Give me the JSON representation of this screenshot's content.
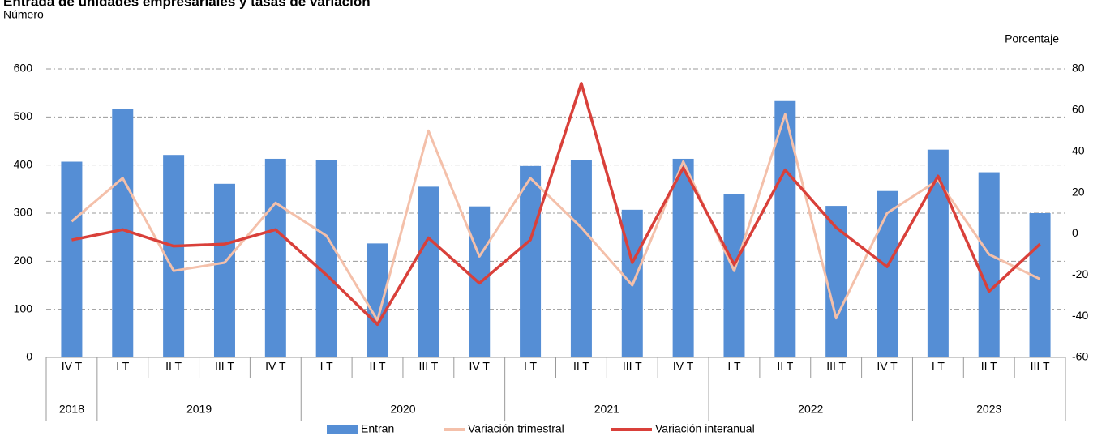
{
  "chart_data": {
    "type": "bar_line_combo",
    "title": "Entrada de unidades empresariales y tasas de variación",
    "y_label": "Número",
    "y2_label": "Porcentaje",
    "categories": [
      "IV T",
      "I T",
      "II T",
      "III T",
      "IV T",
      "I T",
      "II T",
      "III T",
      "IV T",
      "I T",
      "II T",
      "III T",
      "IV T",
      "I T",
      "II T",
      "III T",
      "IV T",
      "I T",
      "II T",
      "III T"
    ],
    "year_labels": [
      "2018",
      "2019",
      null,
      null,
      null,
      "2020",
      null,
      null,
      null,
      "2021",
      null,
      null,
      null,
      "2022",
      null,
      null,
      null,
      "2023",
      null,
      null
    ],
    "series": [
      {
        "name": "Entran",
        "type": "bar",
        "color": "#558ed5",
        "values": [
          407,
          516,
          421,
          361,
          413,
          410,
          237,
          355,
          314,
          398,
          410,
          307,
          413,
          339,
          533,
          315,
          346,
          432,
          385,
          300
        ]
      },
      {
        "name": "Variación trimestral",
        "type": "line",
        "axis": "y2",
        "color": "#f4c0aa",
        "values": [
          6,
          27,
          -18,
          -14,
          15,
          -1,
          -42,
          50,
          -11,
          27,
          3,
          -25,
          35,
          -18,
          58,
          -41,
          10,
          26,
          -10,
          -22
        ]
      },
      {
        "name": "Variación interanual",
        "type": "line",
        "axis": "y2",
        "color": "#d9403a",
        "values": [
          -3,
          2,
          -6,
          -5,
          2,
          -20,
          -44,
          -2,
          -24,
          -3,
          73,
          -14,
          32,
          -15,
          31,
          3,
          -16,
          28,
          -28,
          -5
        ]
      }
    ],
    "ylim": [
      0,
      600
    ],
    "yticks": [
      0,
      100,
      200,
      300,
      400,
      500,
      600
    ],
    "y2lim": [
      -60,
      80
    ],
    "y2ticks": [
      -60,
      -40,
      -20,
      0,
      20,
      40,
      60,
      80
    ],
    "grid": true,
    "legend": "bottom"
  }
}
